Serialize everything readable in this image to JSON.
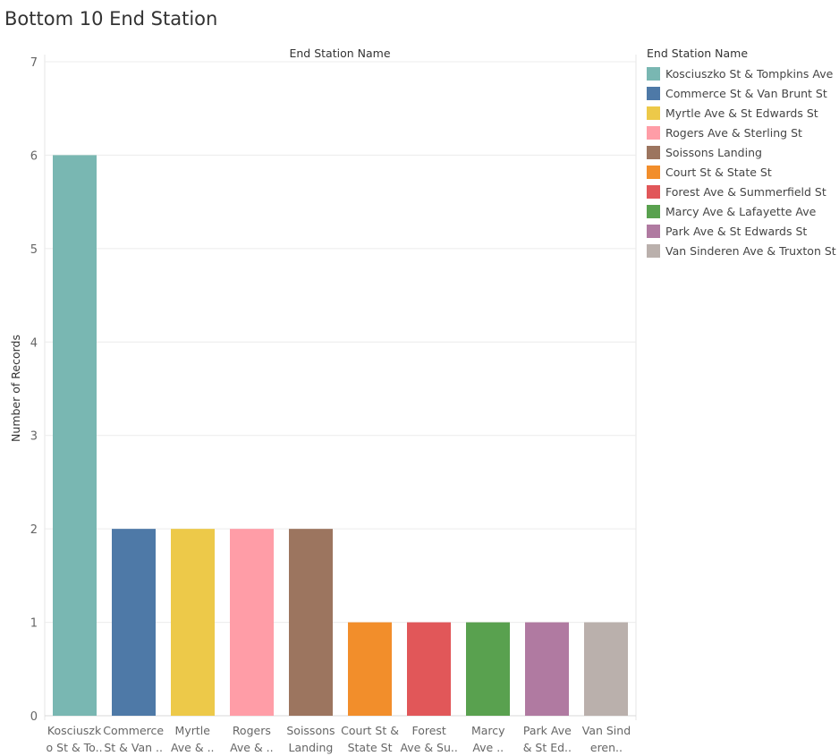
{
  "page_title": "Bottom 10 End Station",
  "chart_data": {
    "type": "bar",
    "title": "Bottom 10 End Station",
    "column_header": "End Station Name",
    "ylabel": "Number of Records",
    "ylim": [
      0,
      7
    ],
    "yticks": [
      0,
      1,
      2,
      3,
      4,
      5,
      6,
      7
    ],
    "grid": true,
    "legend_position": "right",
    "legend_title": "End Station Name",
    "categories": [
      "Kosciuszko St & Tompkins Ave",
      "Commerce St & Van Brunt St",
      "Myrtle Ave & St Edwards St",
      "Rogers Ave & Sterling St",
      "Soissons Landing",
      "Court St & State St",
      "Forest Ave & Summerfield St",
      "Marcy Ave & Lafayette Ave",
      "Park Ave & St Edwards St",
      "Van Sinderen Ave & Truxton St"
    ],
    "tick_labels": [
      [
        "Kosciuszk",
        "o St & To.."
      ],
      [
        "Commerce",
        "St & Van .."
      ],
      [
        "Myrtle",
        "Ave & .."
      ],
      [
        "Rogers",
        "Ave & .."
      ],
      [
        "Soissons",
        "Landing"
      ],
      [
        "Court St &",
        "State St"
      ],
      [
        "Forest",
        "Ave & Su.."
      ],
      [
        "Marcy",
        "Ave .."
      ],
      [
        "Park Ave",
        "& St Ed.."
      ],
      [
        "Van Sind",
        "eren.."
      ]
    ],
    "values": [
      6,
      2,
      2,
      2,
      2,
      1,
      1,
      1,
      1,
      1
    ],
    "colors": [
      "#79b7b2",
      "#4e79a7",
      "#edc949",
      "#ff9da7",
      "#9c755f",
      "#f28e2b",
      "#e15759",
      "#59a14f",
      "#b07aa1",
      "#bab0ac"
    ]
  }
}
